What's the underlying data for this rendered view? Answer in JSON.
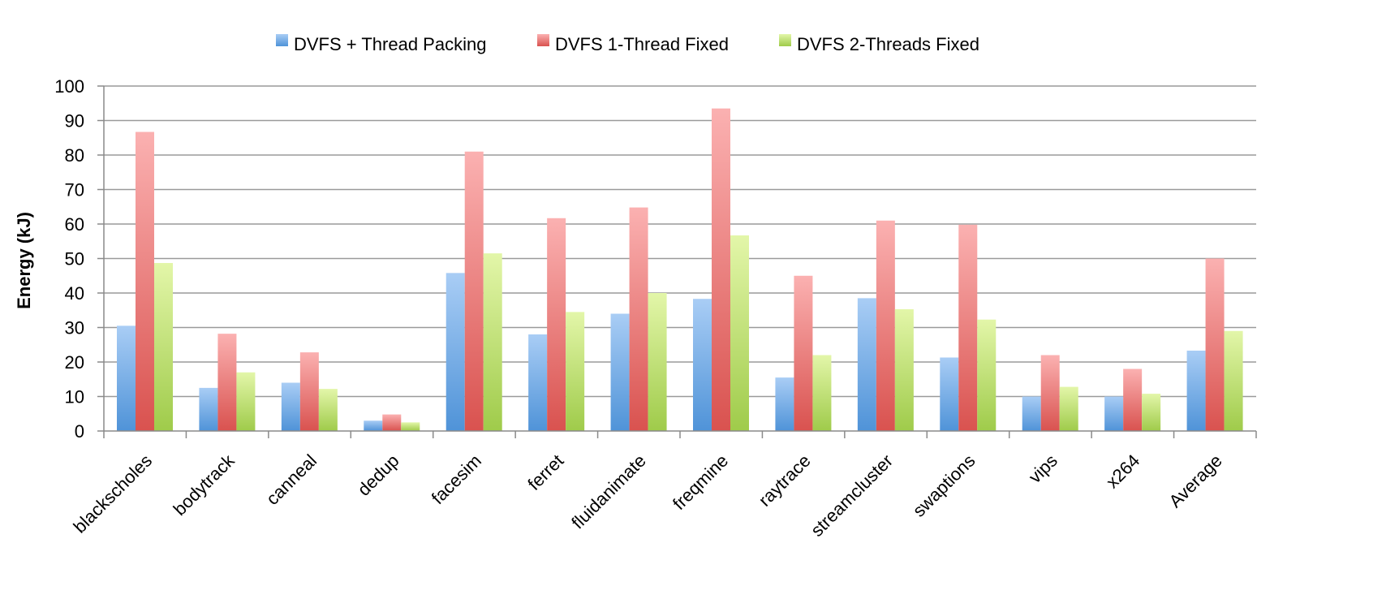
{
  "chart_data": {
    "type": "bar",
    "title": "",
    "xlabel": "",
    "ylabel": "Energy (kJ)",
    "ylim": [
      0,
      100
    ],
    "yticks": [
      "0",
      "10",
      "20",
      "30",
      "40",
      "50",
      "60",
      "70",
      "80",
      "90",
      "100"
    ],
    "grid": true,
    "legend_position": "top",
    "categories": [
      "blackscholes",
      "bodytrack",
      "canneal",
      "dedup",
      "facesim",
      "ferret",
      "fluidanimate",
      "freqmine",
      "raytrace",
      "streamcluster",
      "swaptions",
      "vips",
      "x264",
      "Average"
    ],
    "series": [
      {
        "name": "DVFS + Thread Packing",
        "color_top": "#a9cdf5",
        "color_bottom": "#4f93d8",
        "values": [
          30.5,
          12.5,
          14,
          3,
          45.8,
          28,
          34,
          38.3,
          15.5,
          38.5,
          21.3,
          10,
          10,
          23.3
        ]
      },
      {
        "name": "DVFS 1-Thread Fixed",
        "color_top": "#fbb1b1",
        "color_bottom": "#d9524f",
        "values": [
          86.7,
          28.2,
          22.8,
          4.8,
          81,
          61.7,
          64.8,
          93.5,
          45,
          61,
          59.8,
          22,
          18,
          50
        ]
      },
      {
        "name": "DVFS  2-Threads Fixed",
        "color_top": "#e3f6a9",
        "color_bottom": "#9fcb4a",
        "values": [
          48.7,
          17,
          12.2,
          2.5,
          51.5,
          34.5,
          40,
          56.7,
          22,
          35.3,
          32.3,
          12.8,
          10.8,
          29
        ]
      }
    ]
  }
}
